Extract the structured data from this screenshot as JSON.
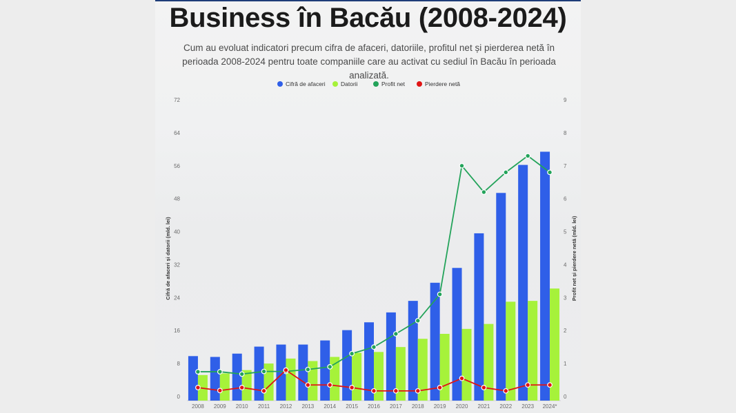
{
  "title": "Business în Bacău (2008-2024)",
  "subtitle": "Cum au evoluat indicatori precum cifra de afaceri, datoriile, profitul net și pierderea netă în perioada 2008-2024 pentru toate companiile care au activat cu sediul în Bacău în perioada analizată.",
  "colors": {
    "cifra": "#2f5fe8",
    "datorii": "#a6f23a",
    "profit": "#23a35a",
    "pierdere": "#e01515"
  },
  "chart_data": {
    "type": "bar",
    "categories": [
      "2008",
      "2009",
      "2010",
      "2011",
      "2012",
      "2013",
      "2014",
      "2015",
      "2016",
      "2017",
      "2018",
      "2019",
      "2020",
      "2021",
      "2022",
      "2023",
      "2024*"
    ],
    "series": [
      {
        "name": "Cifră de afaceri",
        "type": "bar",
        "axis": "left",
        "values": [
          9.8,
          9.6,
          10.4,
          12.1,
          12.6,
          12.6,
          13.6,
          16.1,
          18.0,
          20.4,
          23.2,
          27.6,
          31.2,
          39.6,
          49.4,
          56.2,
          59.4
        ]
      },
      {
        "name": "Datorii",
        "type": "bar",
        "axis": "left",
        "values": [
          5.2,
          5.6,
          6.4,
          8.0,
          9.2,
          8.6,
          9.6,
          10.6,
          10.8,
          12.0,
          14.0,
          15.2,
          16.4,
          17.6,
          23.0,
          23.2,
          26.2
        ]
      },
      {
        "name": "Profit net",
        "type": "line",
        "axis": "right",
        "values": [
          0.75,
          0.75,
          0.68,
          0.76,
          0.76,
          0.82,
          0.9,
          1.3,
          1.5,
          1.9,
          2.3,
          3.1,
          7.0,
          6.2,
          6.8,
          7.3,
          6.8
        ]
      },
      {
        "name": "Pierdere netă",
        "type": "line",
        "axis": "right",
        "values": [
          0.27,
          0.18,
          0.27,
          0.17,
          0.8,
          0.35,
          0.35,
          0.27,
          0.17,
          0.17,
          0.17,
          0.27,
          0.55,
          0.27,
          0.17,
          0.35,
          0.35
        ]
      }
    ],
    "ylabel_left": "Cifră de afaceri și datorii (mld. lei)",
    "ylabel_right": "Profit net și pierdere netă (mld. lei)",
    "yticks_left": [
      "0",
      "8",
      "16",
      "24",
      "32",
      "40",
      "48",
      "56",
      "64",
      "72"
    ],
    "yticks_right": [
      "0",
      "1",
      "2",
      "3",
      "4",
      "5",
      "6",
      "7",
      "8",
      "9"
    ],
    "ylim_left": [
      0,
      72
    ],
    "ylim_right": [
      0,
      9
    ],
    "legend_position": "top-center",
    "grid": false
  }
}
